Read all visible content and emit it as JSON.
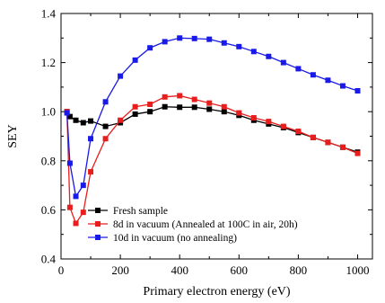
{
  "chart_data": {
    "type": "line",
    "title": "",
    "xlabel": "Primary electron energy (eV)",
    "ylabel": "SEY",
    "xlim": [
      0,
      1050
    ],
    "ylim": [
      0.4,
      1.4
    ],
    "xticks": [
      0,
      200,
      400,
      600,
      800,
      1000
    ],
    "yticks": [
      0.4,
      0.6,
      0.8,
      1.0,
      1.2,
      1.4
    ],
    "xtick_labels": [
      "0",
      "200",
      "400",
      "600",
      "800",
      "1000"
    ],
    "ytick_labels": [
      "0.4",
      "0.6",
      "0.8",
      "1.0",
      "1.2",
      "1.4"
    ],
    "legend_position": "bottom-left",
    "grid": false,
    "series": [
      {
        "name": "Fresh sample",
        "color": "#000000",
        "marker": "square",
        "x": [
          20,
          30,
          50,
          75,
          100,
          150,
          200,
          250,
          300,
          350,
          400,
          450,
          500,
          550,
          600,
          650,
          700,
          750,
          800,
          850,
          900,
          950,
          1000
        ],
        "y": [
          1.0,
          0.98,
          0.965,
          0.955,
          0.962,
          0.94,
          0.955,
          0.99,
          1.0,
          1.02,
          1.018,
          1.018,
          1.01,
          1.0,
          0.985,
          0.965,
          0.95,
          0.935,
          0.915,
          0.895,
          0.875,
          0.855,
          0.835
        ]
      },
      {
        "name": "8d in vacuum (Annealed at 100C in air, 20h)",
        "color": "#e81e1e",
        "marker": "square",
        "x": [
          20,
          30,
          50,
          75,
          100,
          150,
          200,
          250,
          300,
          350,
          400,
          450,
          500,
          550,
          600,
          650,
          700,
          750,
          800,
          850,
          900,
          950,
          1000
        ],
        "y": [
          1.0,
          0.61,
          0.545,
          0.59,
          0.755,
          0.89,
          0.965,
          1.02,
          1.03,
          1.06,
          1.065,
          1.05,
          1.035,
          1.02,
          0.995,
          0.975,
          0.96,
          0.94,
          0.92,
          0.895,
          0.875,
          0.855,
          0.83
        ]
      },
      {
        "name": "10d in vacuum (no annealing)",
        "color": "#1a1ae8",
        "marker": "square",
        "x": [
          20,
          30,
          50,
          75,
          100,
          150,
          200,
          250,
          300,
          350,
          400,
          450,
          500,
          550,
          600,
          650,
          700,
          750,
          800,
          850,
          900,
          950,
          1000
        ],
        "y": [
          0.995,
          0.79,
          0.655,
          0.7,
          0.89,
          1.04,
          1.145,
          1.21,
          1.26,
          1.285,
          1.3,
          1.298,
          1.295,
          1.28,
          1.265,
          1.245,
          1.225,
          1.2,
          1.175,
          1.15,
          1.128,
          1.105,
          1.085
        ]
      }
    ]
  }
}
